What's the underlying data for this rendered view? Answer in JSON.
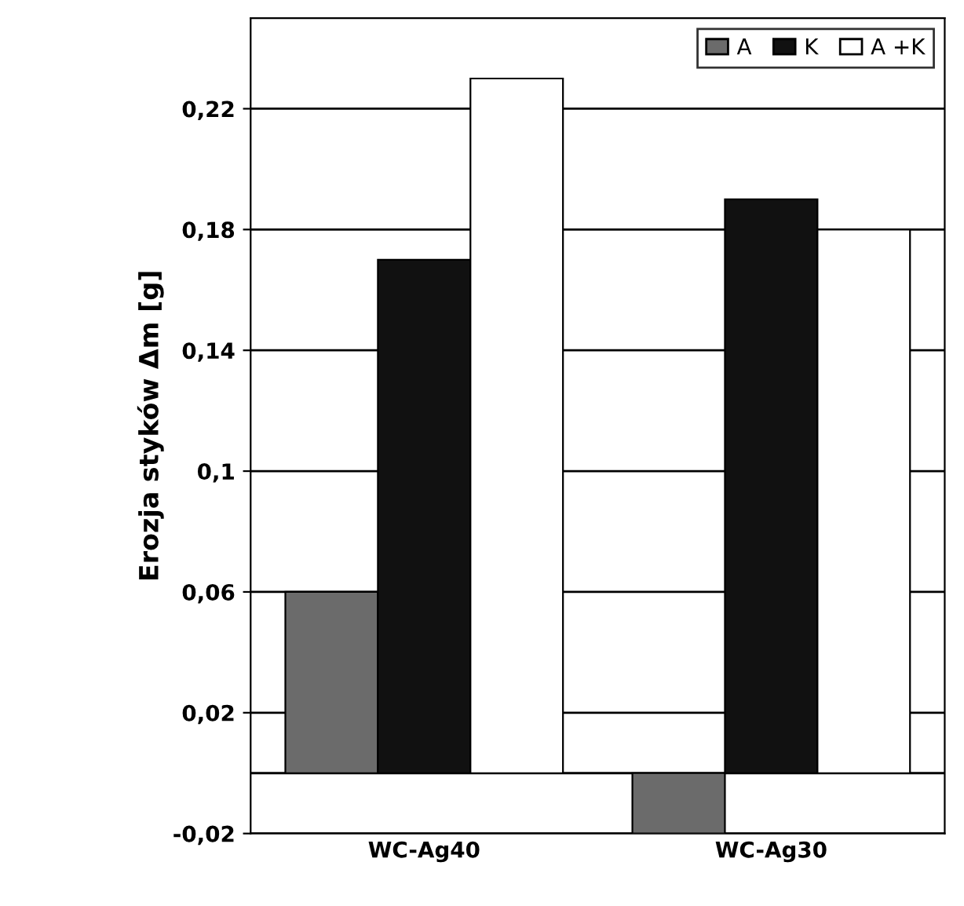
{
  "chart_data": {
    "type": "bar",
    "ylabel": "Erozja styków Δm [g]",
    "categories": [
      "WC-Ag40",
      "WC-Ag30"
    ],
    "series": [
      {
        "name": "A",
        "color": "#6b6b6b",
        "values": [
          0.06,
          -0.02
        ]
      },
      {
        "name": "K",
        "color": "#111111",
        "values": [
          0.17,
          0.19
        ]
      },
      {
        "name": "A +K",
        "color": "#ffffff",
        "values": [
          0.23,
          0.18
        ]
      }
    ],
    "ylim": [
      -0.02,
      0.25
    ],
    "yticks": [
      {
        "value": -0.02,
        "label": "-0,02"
      },
      {
        "value": 0.02,
        "label": "0,02"
      },
      {
        "value": 0.06,
        "label": "0,06"
      },
      {
        "value": 0.1,
        "label": "0,1"
      },
      {
        "value": 0.14,
        "label": "0,14"
      },
      {
        "value": 0.18,
        "label": "0,18"
      },
      {
        "value": 0.22,
        "label": "0,22"
      }
    ],
    "grid": "y",
    "legend": "top right"
  }
}
